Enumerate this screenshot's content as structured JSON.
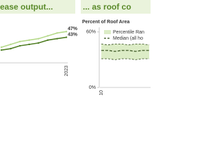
{
  "chart_data": [
    {
      "type": "line",
      "title": "ease output...",
      "categories": [
        null,
        null,
        null,
        null,
        null,
        null,
        null,
        "2023"
      ],
      "ylim": [
        25,
        50
      ],
      "series": [
        {
          "color": "#b5d98a",
          "values": [
            36,
            38,
            40,
            41,
            42,
            44,
            46,
            47
          ],
          "value_labels": [
            null,
            null,
            null,
            null,
            null,
            null,
            null,
            "47%"
          ]
        },
        {
          "color": "#4e7d22",
          "values": [
            34,
            35,
            37,
            38,
            39,
            41,
            42,
            43
          ],
          "value_labels": [
            null,
            null,
            null,
            null,
            null,
            null,
            null,
            "43%"
          ]
        }
      ]
    },
    {
      "type": "line",
      "title": "... as roof co",
      "ylabel": "Percent of Roof Area",
      "categories": [
        "2010",
        null,
        null,
        null,
        null,
        null,
        null,
        null
      ],
      "ylim": [
        0,
        65
      ],
      "yticks": [
        {
          "value": 60,
          "label": "60%"
        },
        {
          "value": 0,
          "label": "0%"
        }
      ],
      "series": [
        {
          "name": "Percentile Ran",
          "color": "#dcecc6",
          "lower": [
            31,
            31,
            30,
            31,
            31,
            30,
            31,
            31
          ],
          "upper": [
            47,
            46,
            47,
            47,
            46,
            47,
            47,
            46
          ]
        },
        {
          "name": "Median (all ho",
          "color": "#2f4a16",
          "values": [
            40,
            40,
            39,
            40,
            40,
            39,
            40,
            40
          ],
          "dash": true
        }
      ]
    }
  ]
}
